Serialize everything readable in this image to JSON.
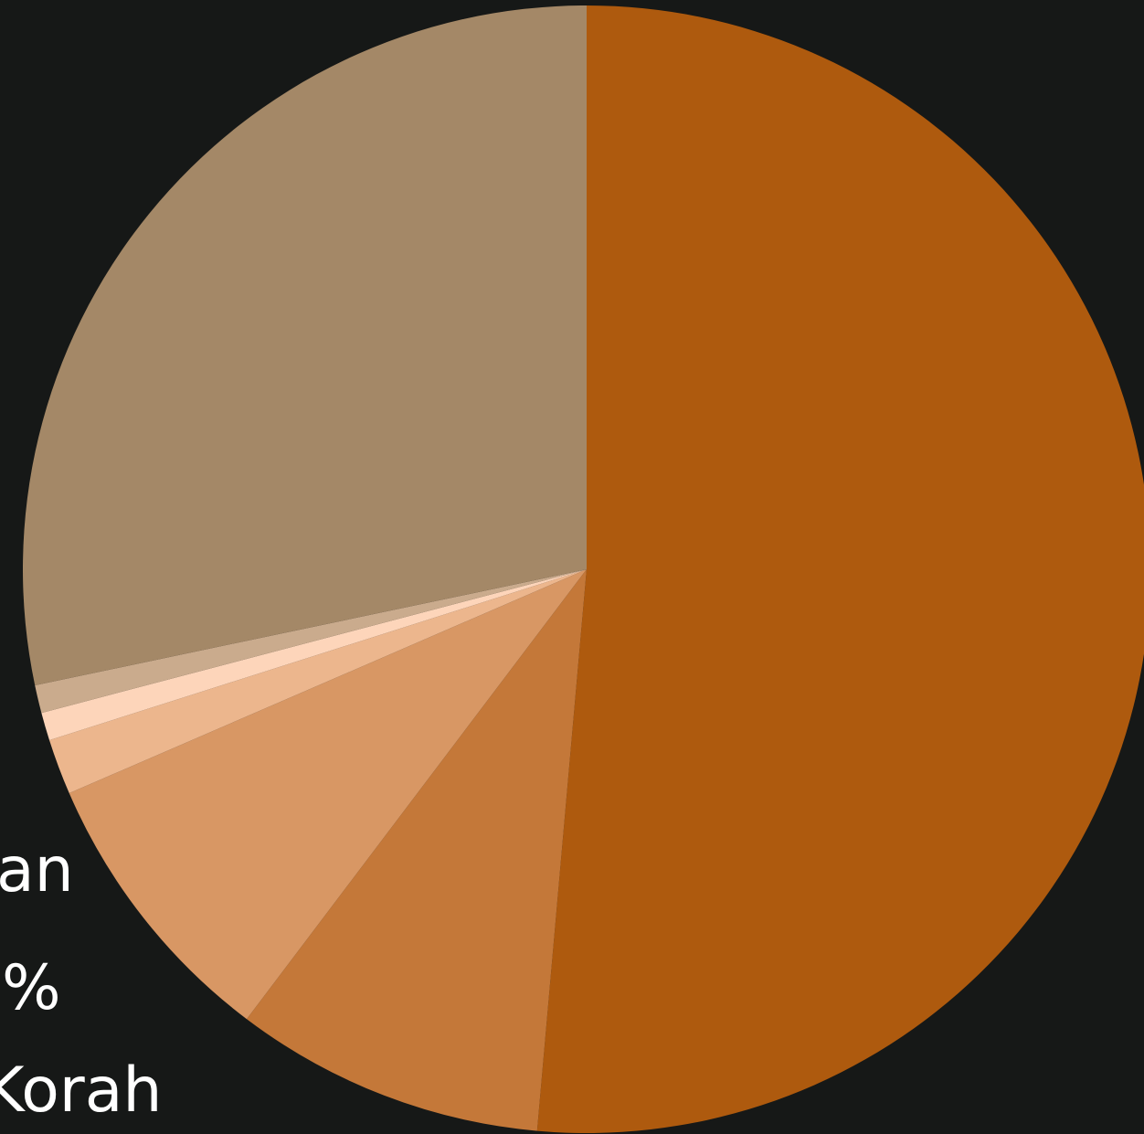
{
  "colors": {
    "background": "#161817"
  },
  "chart_data": {
    "type": "pie",
    "start_angle": "top",
    "direction": "clockwise",
    "slices": [
      {
        "value": 51.4,
        "color": "#AE5A0E"
      },
      {
        "value": 8.9,
        "color": "#C47839"
      },
      {
        "value": 8.2,
        "color": "#D89764"
      },
      {
        "value": 1.6,
        "color": "#ECB68D"
      },
      {
        "value": 0.8,
        "color": "#FDD5BA"
      },
      {
        "value": 0.8,
        "color": "#CAAB8D"
      },
      {
        "value": 28.3,
        "color": "#A48867"
      }
    ],
    "visible_label_fragments": [
      "an",
      "%",
      "Korah"
    ]
  }
}
